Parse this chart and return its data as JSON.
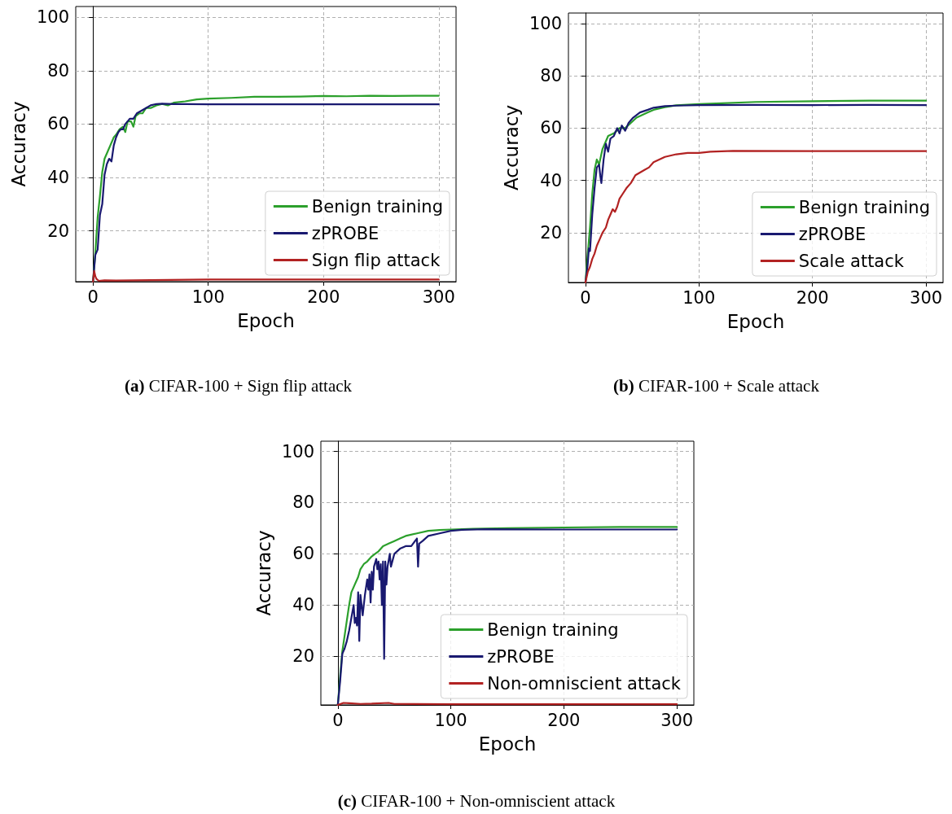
{
  "chart_data": [
    {
      "type": "line",
      "xlabel": "Epoch",
      "ylabel": "Accuracy",
      "annotations": [
        "(a) CIFAR-100 + Sign flip attack"
      ],
      "xlim": [
        -15,
        315
      ],
      "ylim": [
        1,
        104
      ],
      "xticks": [
        0,
        100,
        200,
        300
      ],
      "yticks": [
        20,
        40,
        60,
        80,
        100
      ],
      "grid": true,
      "legend": "bottom right",
      "marker": "none",
      "series": [
        {
          "name": "Benign training",
          "color": "#2ca02c",
          "x": [
            0,
            2,
            4,
            6,
            8,
            10,
            12,
            15,
            18,
            20,
            23,
            26,
            28,
            30,
            33,
            35,
            37,
            40,
            43,
            46,
            50,
            55,
            60,
            65,
            70,
            80,
            90,
            100,
            120,
            140,
            160,
            180,
            200,
            220,
            240,
            260,
            280,
            300
          ],
          "values": [
            1,
            12,
            25,
            33,
            42,
            47,
            49,
            52,
            55,
            56,
            58,
            59,
            57,
            61,
            61,
            59,
            63,
            64,
            64,
            66,
            66,
            67,
            67.5,
            67,
            68,
            68.5,
            69.2,
            69.5,
            69.8,
            70.2,
            70.2,
            70.3,
            70.5,
            70.4,
            70.6,
            70.5,
            70.6,
            70.6
          ]
        },
        {
          "name": "zPROBE",
          "color": "#191970",
          "x": [
            0,
            2,
            4,
            6,
            8,
            10,
            12,
            14,
            16,
            18,
            20,
            22,
            24,
            26,
            28,
            30,
            32,
            35,
            38,
            42,
            46,
            50,
            55,
            60,
            70,
            80,
            100,
            150,
            200,
            250,
            300
          ],
          "values": [
            1,
            11,
            13,
            26,
            30,
            41,
            45,
            47,
            46,
            52,
            55,
            57,
            58,
            58,
            60,
            61,
            62,
            62,
            64,
            65,
            66,
            67,
            67.5,
            67.6,
            67.5,
            67.5,
            67.4,
            67.4,
            67.4,
            67.4,
            67.4
          ]
        },
        {
          "name": "Sign flip attack",
          "color": "#b22222",
          "x": [
            0,
            1,
            2,
            3,
            5,
            10,
            20,
            50,
            100,
            200,
            300
          ],
          "values": [
            1,
            5,
            3,
            2,
            1.3,
            1.5,
            1.4,
            1.6,
            1.8,
            1.8,
            1.8
          ]
        }
      ]
    },
    {
      "type": "line",
      "xlabel": "Epoch",
      "ylabel": "Accuracy",
      "annotations": [
        "(b) CIFAR-100 + Scale attack"
      ],
      "xlim": [
        -15,
        315
      ],
      "ylim": [
        1,
        104
      ],
      "xticks": [
        0,
        100,
        200,
        300
      ],
      "yticks": [
        20,
        40,
        60,
        80,
        100
      ],
      "grid": true,
      "legend": "bottom right",
      "marker": "none",
      "series": [
        {
          "name": "Benign training",
          "color": "#2ca02c",
          "x": [
            0,
            2,
            4,
            6,
            8,
            10,
            12,
            15,
            18,
            20,
            25,
            30,
            35,
            40,
            45,
            50,
            55,
            60,
            70,
            80,
            100,
            120,
            150,
            200,
            250,
            300
          ],
          "values": [
            1,
            12,
            22,
            35,
            44,
            48,
            46,
            52,
            55,
            57,
            58,
            60,
            60,
            62,
            64,
            65,
            66,
            67,
            68,
            68.7,
            69.2,
            69.5,
            70,
            70.3,
            70.5,
            70.5
          ]
        },
        {
          "name": "zPROBE",
          "color": "#191970",
          "x": [
            0,
            2,
            3,
            4,
            6,
            8,
            10,
            12,
            13,
            14,
            16,
            18,
            20,
            22,
            25,
            28,
            30,
            32,
            35,
            38,
            42,
            48,
            55,
            60,
            70,
            80,
            100,
            150,
            200,
            250,
            300
          ],
          "values": [
            1,
            8,
            14,
            13,
            27,
            37,
            45,
            46,
            42,
            39,
            48,
            54,
            51,
            56,
            57,
            60,
            58,
            61,
            59,
            62,
            64,
            66,
            67,
            67.8,
            68.4,
            68.6,
            68.8,
            68.9,
            68.8,
            68.9,
            68.8
          ]
        },
        {
          "name": "Scale attack",
          "color": "#b22222",
          "x": [
            0,
            2,
            4,
            6,
            8,
            10,
            13,
            15,
            18,
            20,
            22,
            24,
            26,
            28,
            30,
            33,
            36,
            40,
            44,
            48,
            52,
            56,
            60,
            65,
            70,
            80,
            90,
            100,
            110,
            130,
            200,
            300
          ],
          "values": [
            1,
            5,
            7,
            10,
            12,
            15,
            18,
            20,
            22,
            25,
            27,
            29,
            28,
            30,
            33,
            35,
            37,
            39,
            42,
            43,
            44,
            45,
            47,
            48,
            49,
            50,
            50.5,
            50.5,
            51,
            51.3,
            51.2,
            51.2
          ]
        }
      ]
    },
    {
      "type": "line",
      "xlabel": "Epoch",
      "ylabel": "Accuracy",
      "annotations": [
        "(c) CIFAR-100 + Non-omniscient attack"
      ],
      "xlim": [
        -15,
        315
      ],
      "ylim": [
        1,
        104
      ],
      "xticks": [
        0,
        100,
        200,
        300
      ],
      "yticks": [
        20,
        40,
        60,
        80,
        100
      ],
      "grid": true,
      "legend": "bottom right",
      "marker": "none",
      "series": [
        {
          "name": "Benign training",
          "color": "#2ca02c",
          "x": [
            0,
            2,
            4,
            6,
            8,
            10,
            12,
            15,
            18,
            20,
            23,
            26,
            30,
            33,
            36,
            40,
            45,
            50,
            55,
            60,
            70,
            80,
            90,
            100,
            120,
            150,
            200,
            250,
            300
          ],
          "values": [
            1,
            12,
            22,
            28,
            34,
            40,
            45,
            48,
            51,
            54,
            56,
            57,
            59,
            60,
            61,
            63,
            64,
            65,
            66,
            67,
            68,
            69,
            69.3,
            69.5,
            69.8,
            70,
            70.3,
            70.5,
            70.5
          ]
        },
        {
          "name": "zPROBE",
          "color": "#191970",
          "x": [
            0,
            2,
            4,
            6,
            8,
            10,
            12,
            14,
            15,
            16,
            17,
            18,
            19,
            20,
            22,
            24,
            26,
            27,
            28,
            29,
            30,
            31,
            32,
            34,
            35,
            36,
            37,
            38,
            39,
            40,
            41,
            42,
            43,
            44,
            46,
            47,
            50,
            55,
            60,
            65,
            70,
            71,
            72,
            75,
            80,
            90,
            100,
            110,
            130,
            200,
            300
          ],
          "values": [
            1,
            10,
            21,
            23,
            26,
            30,
            35,
            40,
            33,
            35,
            32,
            45,
            26,
            44,
            36,
            44,
            50,
            46,
            52,
            41,
            53,
            46,
            55,
            58,
            54,
            57,
            50,
            56,
            40,
            57,
            19,
            57,
            48,
            55,
            60,
            55,
            60,
            62,
            63,
            63,
            66,
            55,
            64,
            65,
            67,
            68,
            69,
            69.4,
            69.6,
            69.5,
            69.5
          ]
        },
        {
          "name": "Non-omniscient attack",
          "color": "#b22222",
          "x": [
            0,
            5,
            10,
            20,
            30,
            45,
            50,
            100,
            200,
            300
          ],
          "values": [
            1,
            1.8,
            1.7,
            1.4,
            1.5,
            1.8,
            1.4,
            1.3,
            1.3,
            1.3
          ]
        }
      ]
    }
  ]
}
